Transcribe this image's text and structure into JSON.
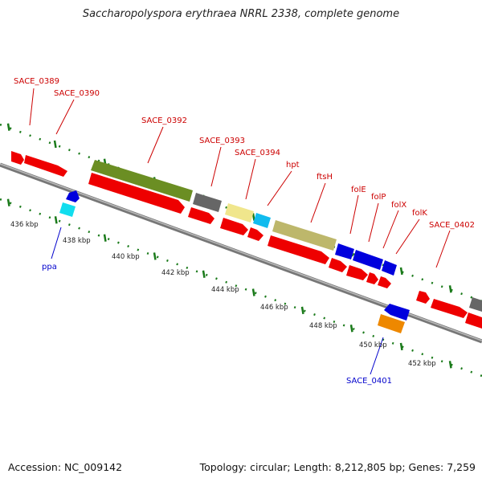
{
  "title": "Saccharopolyspora erythraea NRRL 2338, complete genome",
  "footer": {
    "accession": "Accession: NC_009142",
    "summary": "Topology: circular; Length: 8,212,805 bp; Genes: 7,259"
  },
  "colors": {
    "label_top": "#cc0000",
    "label_bottom": "#0000cc",
    "tick": "#1a7a1a",
    "backbone": "#888888"
  },
  "kbp_labels": [
    "436 kbp",
    "438 kbp",
    "440 kbp",
    "442 kbp",
    "444 kbp",
    "446 kbp",
    "448 kbp",
    "450 kbp",
    "452 kbp"
  ],
  "top_labels": [
    "SACE_0389",
    "SACE_0390",
    "SACE_0392",
    "SACE_0393",
    "SACE_0394",
    "hpt",
    "ftsH",
    "folE",
    "folP",
    "folX",
    "folK",
    "SACE_0402"
  ],
  "bottom_labels": [
    "ppa",
    "SACE_0401"
  ]
}
